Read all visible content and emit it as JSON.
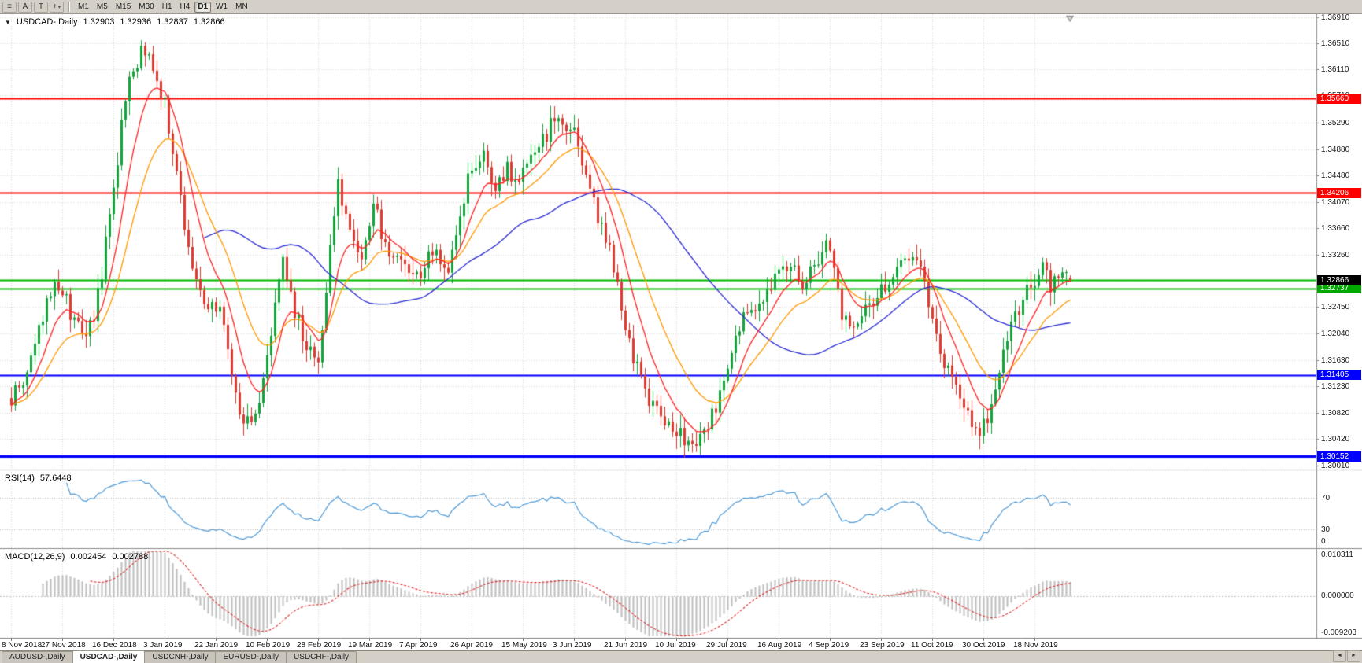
{
  "toolbar": {
    "buttons": [
      {
        "name": "menu-icon",
        "glyph": "≡"
      },
      {
        "name": "letter-a-icon",
        "glyph": "A"
      },
      {
        "name": "letter-t-icon",
        "glyph": "T"
      },
      {
        "name": "crosshair-icon",
        "glyph": "+"
      }
    ],
    "dropdown_glyph": "▾",
    "timeframes": [
      "M1",
      "M5",
      "M15",
      "M30",
      "H1",
      "H4",
      "D1",
      "W1",
      "MN"
    ],
    "active_timeframe": "D1"
  },
  "chart": {
    "collapse_icon": "▼",
    "symbol_timeframe": "USDCAD-,Daily",
    "ohlc": {
      "open": "1.32903",
      "high": "1.32936",
      "low": "1.32837",
      "close": "1.32866"
    }
  },
  "price_axis": {
    "ticks": [
      "1.36910",
      "1.36510",
      "1.36110",
      "1.35710",
      "1.35290",
      "1.34880",
      "1.34480",
      "1.34070",
      "1.33660",
      "1.33260",
      "1.32860",
      "1.32450",
      "1.32040",
      "1.31630",
      "1.31230",
      "1.30820",
      "1.30420",
      "1.30010"
    ]
  },
  "time_axis": {
    "labels": [
      "8 Nov 2018",
      "27 Nov 2018",
      "16 Dec 2018",
      "3 Jan 2019",
      "22 Jan 2019",
      "10 Feb 2019",
      "28 Feb 2019",
      "19 Mar 2019",
      "7 Apr 2019",
      "26 Apr 2019",
      "15 May 2019",
      "3 Jun 2019",
      "21 Jun 2019",
      "10 Jul 2019",
      "29 Jul 2019",
      "16 Aug 2019",
      "4 Sep 2019",
      "23 Sep 2019",
      "11 Oct 2019",
      "30 Oct 2019",
      "18 Nov 2019"
    ]
  },
  "rsi": {
    "title": "RSI(14)",
    "value": "57.6448",
    "color": "#4f9bd8",
    "levels": [
      70,
      30
    ],
    "axis_labels": [
      {
        "v": 70,
        "t": "70"
      },
      {
        "v": 30,
        "t": "30"
      },
      {
        "v": 0,
        "t": "0"
      }
    ]
  },
  "macd": {
    "title": "MACD(12,26,9)",
    "value_main": "0.002454",
    "value_signal": "0.002788",
    "histogram_color": "#bdbdbd",
    "signal_color": "#e02a2a",
    "axis_labels": [
      {
        "pos": "top",
        "t": "0.010311"
      },
      {
        "pos": "zero",
        "t": "0.000000"
      },
      {
        "pos": "bottom",
        "t": "-0.009203"
      }
    ],
    "range": [
      -0.009203,
      0.010311
    ]
  },
  "tabs": {
    "items": [
      {
        "label": "AUDUSD-,Daily",
        "active": false
      },
      {
        "label": "USDCAD-,Daily",
        "active": true
      },
      {
        "label": "USDCNH-,Daily",
        "active": false
      },
      {
        "label": "EURUSD-,Daily",
        "active": false
      },
      {
        "label": "USDCHF-,Daily",
        "active": false
      }
    ],
    "scroll_left": "◄",
    "scroll_right": "►"
  },
  "chart_data": {
    "type": "candlestick",
    "symbol": "USDCAD-",
    "timeframe": "Daily",
    "num_candles": 270,
    "candles_per_label": 13,
    "colors": {
      "bull": "#14a33c",
      "bear": "#dd3b32",
      "grid": "#d8d8d8",
      "background": "#ffffff"
    },
    "last_candle": {
      "open": 1.32903,
      "high": 1.32936,
      "low": 1.32837,
      "close": 1.32866
    },
    "current_price": {
      "value": 1.32866,
      "label": "1.32866",
      "box": "#000000"
    },
    "indicators": {
      "rsi_period": 14,
      "macd": [
        12,
        26,
        9
      ]
    },
    "moving_averages": [
      {
        "name": "fast",
        "period": 9,
        "method": "ema",
        "color": "#ff2222"
      },
      {
        "name": "medium",
        "period": 20,
        "method": "ema",
        "color": "#ff9900"
      },
      {
        "name": "slow",
        "period": 50,
        "method": "sma",
        "color": "#2b2bd4"
      }
    ],
    "levels": [
      {
        "price": 1.3566,
        "color": "#ff0000",
        "width": 2,
        "label": "1.35660",
        "box": "#ff0000"
      },
      {
        "price": 1.34206,
        "color": "#ff0000",
        "width": 2,
        "label": "1.34206",
        "box": "#ff0000"
      },
      {
        "price": 1.3287,
        "color": "#00bb00",
        "width": 2,
        "label": null,
        "box": null
      },
      {
        "price": 1.32737,
        "color": "#00bb00",
        "width": 2,
        "label": "1.32737",
        "box": "#00a800"
      },
      {
        "price": 1.31405,
        "color": "#0000ff",
        "width": 2,
        "label": "1.31405",
        "box": "#0000ff"
      },
      {
        "price": 1.30152,
        "color": "#0000ff",
        "width": 3,
        "label": "1.30152",
        "box": "#0000ff"
      }
    ],
    "price_anchors": [
      [
        0,
        1.3105
      ],
      [
        3,
        1.313
      ],
      [
        6,
        1.318
      ],
      [
        9,
        1.325
      ],
      [
        11,
        1.3295
      ],
      [
        13,
        1.327
      ],
      [
        15,
        1.3235
      ],
      [
        17,
        1.321
      ],
      [
        19,
        1.3195
      ],
      [
        21,
        1.3235
      ],
      [
        23,
        1.33
      ],
      [
        26,
        1.342
      ],
      [
        28,
        1.352
      ],
      [
        30,
        1.359
      ],
      [
        33,
        1.364
      ],
      [
        35,
        1.3625
      ],
      [
        37,
        1.36
      ],
      [
        39,
        1.3555
      ],
      [
        41,
        1.348
      ],
      [
        43,
        1.341
      ],
      [
        45,
        1.333
      ],
      [
        47,
        1.328
      ],
      [
        49,
        1.3255
      ],
      [
        52,
        1.325
      ],
      [
        54,
        1.322
      ],
      [
        56,
        1.315
      ],
      [
        58,
        1.3085
      ],
      [
        61,
        1.306
      ],
      [
        63,
        1.31
      ],
      [
        65,
        1.317
      ],
      [
        67,
        1.324
      ],
      [
        69,
        1.331
      ],
      [
        71,
        1.326
      ],
      [
        73,
        1.322
      ],
      [
        75,
        1.319
      ],
      [
        78,
        1.3165
      ],
      [
        80,
        1.328
      ],
      [
        83,
        1.344
      ],
      [
        86,
        1.336
      ],
      [
        89,
        1.331
      ],
      [
        92,
        1.34
      ],
      [
        95,
        1.3345
      ],
      [
        99,
        1.331
      ],
      [
        103,
        1.329
      ],
      [
        107,
        1.333
      ],
      [
        111,
        1.331
      ],
      [
        114,
        1.338
      ],
      [
        117,
        1.3465
      ],
      [
        120,
        1.348
      ],
      [
        123,
        1.343
      ],
      [
        126,
        1.3455
      ],
      [
        129,
        1.344
      ],
      [
        132,
        1.347
      ],
      [
        135,
        1.35
      ],
      [
        138,
        1.354
      ],
      [
        140,
        1.3535
      ],
      [
        143,
        1.351
      ],
      [
        147,
        1.342
      ],
      [
        150,
        1.337
      ],
      [
        153,
        1.331
      ],
      [
        156,
        1.3215
      ],
      [
        158,
        1.317
      ],
      [
        160,
        1.313
      ],
      [
        163,
        1.309
      ],
      [
        166,
        1.3075
      ],
      [
        169,
        1.306
      ],
      [
        172,
        1.303
      ],
      [
        174,
        1.3025
      ],
      [
        177,
        1.306
      ],
      [
        180,
        1.311
      ],
      [
        182,
        1.3155
      ],
      [
        184,
        1.3215
      ],
      [
        187,
        1.323
      ],
      [
        190,
        1.3255
      ],
      [
        193,
        1.328
      ],
      [
        195,
        1.329
      ],
      [
        198,
        1.331
      ],
      [
        201,
        1.328
      ],
      [
        204,
        1.331
      ],
      [
        207,
        1.3345
      ],
      [
        209,
        1.33
      ],
      [
        211,
        1.3235
      ],
      [
        213,
        1.3205
      ],
      [
        216,
        1.3235
      ],
      [
        219,
        1.326
      ],
      [
        221,
        1.327
      ],
      [
        224,
        1.3295
      ],
      [
        227,
        1.3325
      ],
      [
        229,
        1.3335
      ],
      [
        231,
        1.33
      ],
      [
        234,
        1.3235
      ],
      [
        237,
        1.316
      ],
      [
        240,
        1.3115
      ],
      [
        243,
        1.3075
      ],
      [
        246,
        1.305
      ],
      [
        249,
        1.309
      ],
      [
        252,
        1.317
      ],
      [
        255,
        1.3235
      ],
      [
        258,
        1.327
      ],
      [
        260,
        1.329
      ],
      [
        262,
        1.331
      ],
      [
        264,
        1.327
      ],
      [
        266,
        1.329
      ],
      [
        269,
        1.32866
      ]
    ]
  }
}
